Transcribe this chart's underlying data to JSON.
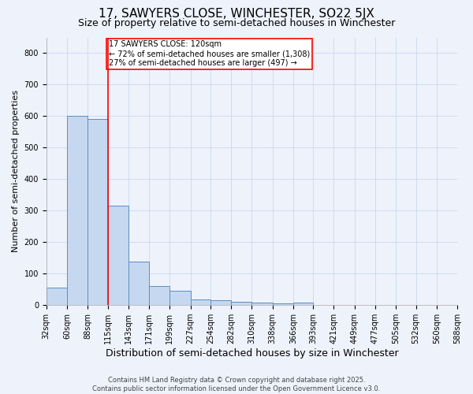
{
  "title": "17, SAWYERS CLOSE, WINCHESTER, SO22 5JX",
  "subtitle": "Size of property relative to semi-detached houses in Winchester",
  "xlabel": "Distribution of semi-detached houses by size in Winchester",
  "ylabel": "Number of semi-detached properties",
  "bar_color": "#c5d8f0",
  "bar_edge_color": "#5b8ec4",
  "grid_color": "#c8d8ee",
  "background_color": "#eef2fb",
  "red_line_x": 115,
  "annotation_text": "17 SAWYERS CLOSE: 120sqm\n← 72% of semi-detached houses are smaller (1,308)\n27% of semi-detached houses are larger (497) →",
  "bin_edges": [
    32,
    60,
    88,
    115,
    143,
    171,
    199,
    227,
    254,
    282,
    310,
    338,
    366,
    393,
    421,
    449,
    477,
    505,
    532,
    560,
    588
  ],
  "bin_labels": [
    "32sqm",
    "60sqm",
    "88sqm",
    "115sqm",
    "143sqm",
    "171sqm",
    "199sqm",
    "227sqm",
    "254sqm",
    "282sqm",
    "310sqm",
    "338sqm",
    "366sqm",
    "393sqm",
    "421sqm",
    "449sqm",
    "477sqm",
    "505sqm",
    "532sqm",
    "560sqm",
    "588sqm"
  ],
  "bar_heights": [
    55,
    600,
    590,
    315,
    138,
    60,
    45,
    17,
    15,
    10,
    7,
    5,
    7,
    0,
    0,
    0,
    0,
    0,
    0,
    0
  ],
  "ylim": [
    0,
    850
  ],
  "yticks": [
    0,
    100,
    200,
    300,
    400,
    500,
    600,
    700,
    800
  ],
  "footer_text": "Contains HM Land Registry data © Crown copyright and database right 2025.\nContains public sector information licensed under the Open Government Licence v3.0.",
  "title_fontsize": 11,
  "subtitle_fontsize": 9,
  "annotation_fontsize": 7,
  "tick_fontsize": 7,
  "ylabel_fontsize": 8,
  "xlabel_fontsize": 9
}
